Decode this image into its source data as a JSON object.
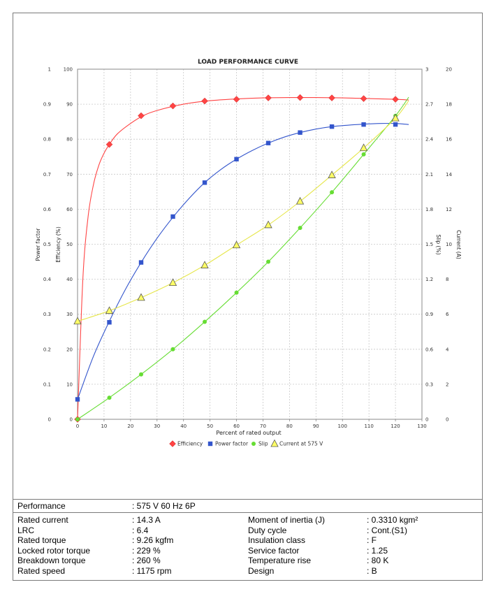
{
  "chart_data": {
    "type": "line",
    "title": "LOAD PERFORMANCE CURVE",
    "xlabel": "Percent of rated output",
    "xlim": [
      0,
      130
    ],
    "xticks": [
      0,
      10,
      20,
      30,
      40,
      50,
      60,
      70,
      80,
      90,
      100,
      110,
      120,
      130
    ],
    "axes": {
      "power_factor": {
        "label": "Power factor",
        "lim": [
          0,
          1
        ],
        "ticks": [
          "0",
          "0.1",
          "0.2",
          "0.3",
          "0.4",
          "0.5",
          "0.6",
          "0.7",
          "0.8",
          "0.9",
          "1"
        ]
      },
      "efficiency": {
        "label": "Efficiency (%)",
        "lim": [
          0,
          100
        ],
        "ticks": [
          "0",
          "10",
          "20",
          "30",
          "40",
          "50",
          "60",
          "70",
          "80",
          "90",
          "100"
        ]
      },
      "slip": {
        "label": "Slip (%)",
        "lim": [
          0,
          3
        ],
        "ticks": [
          "0",
          "0.3",
          "0.6",
          "0.9",
          "1.2",
          "1.5",
          "1.8",
          "2.1",
          "2.4",
          "2.7",
          "3"
        ]
      },
      "current": {
        "label": "Current (A)",
        "lim": [
          0,
          20
        ],
        "ticks": [
          "0",
          "2",
          "4",
          "6",
          "8",
          "10",
          "12",
          "14",
          "16",
          "18",
          "20"
        ]
      }
    },
    "grid": true,
    "legend_position": "bottom",
    "series": [
      {
        "name": "Efficiency",
        "axis": "efficiency",
        "color": "#ff4444",
        "marker": "diamond",
        "x": [
          0,
          12,
          24,
          36,
          48,
          60,
          72,
          84,
          96,
          108,
          120
        ],
        "y": [
          0,
          78.5,
          86.7,
          89.5,
          90.9,
          91.4,
          91.8,
          91.9,
          91.8,
          91.6,
          91.4
        ],
        "curve_x": [
          0,
          2,
          4,
          6,
          8,
          10,
          12,
          15,
          20,
          25,
          30,
          40,
          50,
          60,
          70,
          80,
          90,
          100,
          110,
          120,
          125
        ],
        "curve_y": [
          0,
          40,
          58,
          67,
          72.5,
          76,
          78.5,
          81.5,
          84.5,
          86.8,
          88.2,
          90,
          91,
          91.5,
          91.8,
          91.9,
          91.9,
          91.8,
          91.6,
          91.4,
          91.2
        ]
      },
      {
        "name": "Power factor",
        "axis": "power_factor",
        "color": "#3355cc",
        "marker": "square",
        "x": [
          0,
          12,
          24,
          36,
          48,
          60,
          72,
          84,
          96,
          108,
          120
        ],
        "y": [
          0.057,
          0.277,
          0.448,
          0.579,
          0.676,
          0.743,
          0.789,
          0.819,
          0.836,
          0.842,
          0.842
        ],
        "curve_x": [
          0,
          6,
          12,
          18,
          24,
          30,
          36,
          42,
          48,
          54,
          60,
          66,
          72,
          78,
          84,
          90,
          96,
          102,
          108,
          114,
          120,
          125
        ],
        "curve_y": [
          0.057,
          0.18,
          0.28,
          0.37,
          0.448,
          0.517,
          0.577,
          0.63,
          0.676,
          0.713,
          0.743,
          0.768,
          0.789,
          0.806,
          0.819,
          0.829,
          0.836,
          0.84,
          0.843,
          0.845,
          0.845,
          0.842
        ]
      },
      {
        "name": "Slip",
        "axis": "slip",
        "color": "#66dd33",
        "marker": "circle",
        "x": [
          0,
          12,
          24,
          36,
          48,
          60,
          72,
          84,
          96,
          108,
          120
        ],
        "y": [
          0,
          0.185,
          0.385,
          0.6,
          0.835,
          1.085,
          1.35,
          1.64,
          1.945,
          2.27,
          2.6
        ],
        "curve_x": [
          0,
          12,
          24,
          36,
          48,
          60,
          72,
          84,
          96,
          108,
          120,
          125
        ],
        "curve_y": [
          0,
          0.185,
          0.385,
          0.6,
          0.835,
          1.085,
          1.35,
          1.64,
          1.945,
          2.27,
          2.6,
          2.76
        ]
      },
      {
        "name": "Current at 575 V",
        "axis": "current",
        "color": "#ffff66",
        "marker": "triangle",
        "x": [
          0,
          12,
          24,
          36,
          48,
          60,
          72,
          84,
          96,
          108,
          120
        ],
        "y": [
          5.6,
          6.2,
          6.95,
          7.8,
          8.8,
          9.95,
          11.1,
          12.45,
          13.95,
          15.5,
          17.2
        ],
        "curve_x": [
          0,
          12,
          24,
          36,
          48,
          60,
          72,
          84,
          96,
          108,
          120,
          125
        ],
        "curve_y": [
          5.6,
          6.2,
          6.95,
          7.8,
          8.8,
          9.95,
          11.1,
          12.45,
          13.95,
          15.5,
          17.2,
          18.2
        ]
      }
    ]
  },
  "specs": {
    "performance_label": "Performance",
    "performance_value": ": 575 V 60 Hz 6P",
    "left": [
      {
        "label": "Rated current",
        "value": ": 14.3 A"
      },
      {
        "label": "LRC",
        "value": ": 6.4"
      },
      {
        "label": "Rated torque",
        "value": ": 9.26 kgfm"
      },
      {
        "label": "Locked rotor torque",
        "value": ": 229 %"
      },
      {
        "label": "Breakdown torque",
        "value": ": 260 %"
      },
      {
        "label": "Rated speed",
        "value": ": 1175 rpm"
      }
    ],
    "right": [
      {
        "label": "Moment of inertia (J)",
        "value": ": 0.3310 kgm²"
      },
      {
        "label": "Duty cycle",
        "value": ": Cont.(S1)"
      },
      {
        "label": "Insulation class",
        "value": ": F"
      },
      {
        "label": "Service factor",
        "value": ": 1.25"
      },
      {
        "label": "Temperature rise",
        "value": ": 80 K"
      },
      {
        "label": "Design",
        "value": ": B"
      }
    ]
  }
}
